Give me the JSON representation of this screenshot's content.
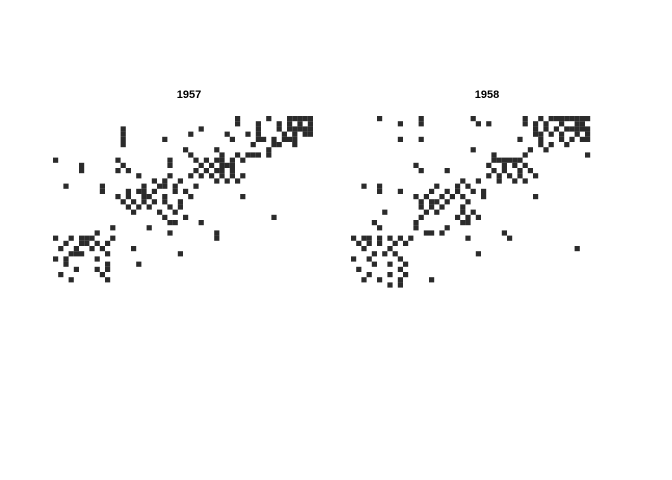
{
  "chart_data": [
    {
      "type": "heatmap",
      "title": "1957",
      "xlabel": "",
      "ylabel": "",
      "grid": false,
      "legend": "none",
      "n_rows": 50,
      "n_cols": 50,
      "color_filled": "#2b2b2b",
      "filled_cells": [
        [
          1,
          36
        ],
        [
          1,
          42
        ],
        [
          1,
          46
        ],
        [
          1,
          47
        ],
        [
          1,
          48
        ],
        [
          1,
          49
        ],
        [
          1,
          50
        ],
        [
          2,
          36
        ],
        [
          2,
          40
        ],
        [
          2,
          44
        ],
        [
          2,
          46
        ],
        [
          2,
          48
        ],
        [
          2,
          50
        ],
        [
          3,
          14
        ],
        [
          3,
          29
        ],
        [
          3,
          40
        ],
        [
          3,
          44
        ],
        [
          3,
          46
        ],
        [
          3,
          47
        ],
        [
          3,
          48
        ],
        [
          3,
          49
        ],
        [
          3,
          50
        ],
        [
          4,
          14
        ],
        [
          4,
          27
        ],
        [
          4,
          34
        ],
        [
          4,
          38
        ],
        [
          4,
          40
        ],
        [
          4,
          45
        ],
        [
          4,
          47
        ],
        [
          4,
          49
        ],
        [
          4,
          50
        ],
        [
          5,
          14
        ],
        [
          5,
          22
        ],
        [
          5,
          35
        ],
        [
          5,
          40
        ],
        [
          5,
          41
        ],
        [
          5,
          43
        ],
        [
          5,
          45
        ],
        [
          5,
          46
        ],
        [
          5,
          47
        ],
        [
          6,
          14
        ],
        [
          6,
          39
        ],
        [
          6,
          43
        ],
        [
          6,
          44
        ],
        [
          6,
          47
        ],
        [
          7,
          26
        ],
        [
          7,
          32
        ],
        [
          7,
          42
        ],
        [
          8,
          27
        ],
        [
          8,
          33
        ],
        [
          8,
          36
        ],
        [
          8,
          38
        ],
        [
          8,
          39
        ],
        [
          8,
          40
        ],
        [
          8,
          42
        ],
        [
          9,
          1
        ],
        [
          9,
          13
        ],
        [
          9,
          23
        ],
        [
          9,
          28
        ],
        [
          9,
          30
        ],
        [
          9,
          32
        ],
        [
          9,
          33
        ],
        [
          9,
          35
        ],
        [
          9,
          37
        ],
        [
          10,
          6
        ],
        [
          10,
          14
        ],
        [
          10,
          23
        ],
        [
          10,
          29
        ],
        [
          10,
          31
        ],
        [
          10,
          33
        ],
        [
          10,
          34
        ],
        [
          10,
          35
        ],
        [
          11,
          6
        ],
        [
          11,
          13
        ],
        [
          11,
          15
        ],
        [
          11,
          28
        ],
        [
          11,
          30
        ],
        [
          11,
          32
        ],
        [
          11,
          33
        ],
        [
          11,
          35
        ],
        [
          12,
          17
        ],
        [
          12,
          23
        ],
        [
          12,
          27
        ],
        [
          12,
          29
        ],
        [
          12,
          31
        ],
        [
          12,
          33
        ],
        [
          12,
          35
        ],
        [
          12,
          37
        ],
        [
          13,
          20
        ],
        [
          13,
          22
        ],
        [
          13,
          25
        ],
        [
          13,
          32
        ],
        [
          13,
          34
        ],
        [
          13,
          36
        ],
        [
          14,
          3
        ],
        [
          14,
          10
        ],
        [
          14,
          18
        ],
        [
          14,
          21
        ],
        [
          14,
          22
        ],
        [
          14,
          24
        ],
        [
          14,
          28
        ],
        [
          15,
          10
        ],
        [
          15,
          15
        ],
        [
          15,
          17
        ],
        [
          15,
          18
        ],
        [
          15,
          20
        ],
        [
          15,
          24
        ],
        [
          15,
          26
        ],
        [
          16,
          13
        ],
        [
          16,
          15
        ],
        [
          16,
          18
        ],
        [
          16,
          19
        ],
        [
          16,
          22
        ],
        [
          16,
          27
        ],
        [
          16,
          37
        ],
        [
          17,
          14
        ],
        [
          17,
          16
        ],
        [
          17,
          18
        ],
        [
          17,
          20
        ],
        [
          17,
          22
        ],
        [
          17,
          25
        ],
        [
          18,
          15
        ],
        [
          18,
          17
        ],
        [
          18,
          19
        ],
        [
          18,
          23
        ],
        [
          18,
          25
        ],
        [
          19,
          16
        ],
        [
          19,
          21
        ],
        [
          19,
          24
        ],
        [
          20,
          22
        ],
        [
          20,
          26
        ],
        [
          20,
          43
        ],
        [
          21,
          23
        ],
        [
          21,
          24
        ],
        [
          21,
          29
        ],
        [
          22,
          12
        ],
        [
          22,
          19
        ],
        [
          23,
          9
        ],
        [
          23,
          23
        ],
        [
          23,
          32
        ],
        [
          24,
          1
        ],
        [
          24,
          4
        ],
        [
          24,
          6
        ],
        [
          24,
          7
        ],
        [
          24,
          8
        ],
        [
          24,
          12
        ],
        [
          24,
          32
        ],
        [
          25,
          3
        ],
        [
          25,
          6
        ],
        [
          25,
          7
        ],
        [
          25,
          9
        ],
        [
          25,
          11
        ],
        [
          26,
          2
        ],
        [
          26,
          5
        ],
        [
          26,
          8
        ],
        [
          26,
          10
        ],
        [
          26,
          16
        ],
        [
          27,
          4
        ],
        [
          27,
          5
        ],
        [
          27,
          6
        ],
        [
          27,
          11
        ],
        [
          27,
          25
        ],
        [
          28,
          1
        ],
        [
          28,
          3
        ],
        [
          28,
          9
        ],
        [
          29,
          3
        ],
        [
          29,
          11
        ],
        [
          29,
          17
        ],
        [
          30,
          5
        ],
        [
          30,
          9
        ],
        [
          30,
          11
        ],
        [
          31,
          2
        ],
        [
          31,
          10
        ],
        [
          32,
          4
        ],
        [
          32,
          11
        ]
      ]
    },
    {
      "type": "heatmap",
      "title": "1958",
      "xlabel": "",
      "ylabel": "",
      "grid": false,
      "legend": "none",
      "n_rows": 50,
      "n_cols": 50,
      "color_filled": "#2b2b2b",
      "filled_cells": [
        [
          1,
          6
        ],
        [
          1,
          14
        ],
        [
          1,
          24
        ],
        [
          1,
          34
        ],
        [
          1,
          37
        ],
        [
          1,
          39
        ],
        [
          1,
          40
        ],
        [
          1,
          41
        ],
        [
          1,
          42
        ],
        [
          1,
          43
        ],
        [
          1,
          44
        ],
        [
          1,
          45
        ],
        [
          1,
          46
        ],
        [
          2,
          10
        ],
        [
          2,
          14
        ],
        [
          2,
          25
        ],
        [
          2,
          27
        ],
        [
          2,
          34
        ],
        [
          2,
          36
        ],
        [
          2,
          38
        ],
        [
          2,
          41
        ],
        [
          2,
          44
        ],
        [
          2,
          45
        ],
        [
          3,
          36
        ],
        [
          3,
          38
        ],
        [
          3,
          40
        ],
        [
          3,
          42
        ],
        [
          3,
          43
        ],
        [
          3,
          44
        ],
        [
          3,
          45
        ],
        [
          3,
          46
        ],
        [
          4,
          36
        ],
        [
          4,
          37
        ],
        [
          4,
          39
        ],
        [
          4,
          41
        ],
        [
          4,
          44
        ],
        [
          4,
          46
        ],
        [
          5,
          10
        ],
        [
          5,
          14
        ],
        [
          5,
          33
        ],
        [
          5,
          37
        ],
        [
          5,
          41
        ],
        [
          5,
          43
        ],
        [
          5,
          45
        ],
        [
          5,
          46
        ],
        [
          6,
          37
        ],
        [
          6,
          39
        ],
        [
          6,
          42
        ],
        [
          7,
          24
        ],
        [
          7,
          35
        ],
        [
          7,
          38
        ],
        [
          8,
          28
        ],
        [
          8,
          34
        ],
        [
          8,
          46
        ],
        [
          9,
          28
        ],
        [
          9,
          29
        ],
        [
          9,
          30
        ],
        [
          9,
          31
        ],
        [
          9,
          32
        ],
        [
          9,
          33
        ],
        [
          10,
          13
        ],
        [
          10,
          27
        ],
        [
          10,
          30
        ],
        [
          10,
          32
        ],
        [
          10,
          34
        ],
        [
          11,
          14
        ],
        [
          11,
          19
        ],
        [
          11,
          28
        ],
        [
          11,
          30
        ],
        [
          11,
          33
        ],
        [
          11,
          35
        ],
        [
          12,
          27
        ],
        [
          12,
          29
        ],
        [
          12,
          31
        ],
        [
          12,
          33
        ],
        [
          12,
          36
        ],
        [
          13,
          22
        ],
        [
          13,
          25
        ],
        [
          13,
          29
        ],
        [
          13,
          32
        ],
        [
          13,
          34
        ],
        [
          14,
          3
        ],
        [
          14,
          6
        ],
        [
          14,
          17
        ],
        [
          14,
          21
        ],
        [
          14,
          23
        ],
        [
          15,
          6
        ],
        [
          15,
          10
        ],
        [
          15,
          16
        ],
        [
          15,
          19
        ],
        [
          15,
          21
        ],
        [
          15,
          24
        ],
        [
          15,
          26
        ],
        [
          16,
          13
        ],
        [
          16,
          15
        ],
        [
          16,
          18
        ],
        [
          16,
          20
        ],
        [
          16,
          22
        ],
        [
          16,
          26
        ],
        [
          16,
          36
        ],
        [
          17,
          14
        ],
        [
          17,
          16
        ],
        [
          17,
          17
        ],
        [
          17,
          19
        ],
        [
          17,
          23
        ],
        [
          18,
          14
        ],
        [
          18,
          16
        ],
        [
          18,
          18
        ],
        [
          18,
          22
        ],
        [
          19,
          7
        ],
        [
          19,
          15
        ],
        [
          19,
          17
        ],
        [
          19,
          22
        ],
        [
          19,
          24
        ],
        [
          20,
          14
        ],
        [
          20,
          21
        ],
        [
          20,
          23
        ],
        [
          20,
          25
        ],
        [
          21,
          5
        ],
        [
          21,
          13
        ],
        [
          21,
          22
        ],
        [
          21,
          23
        ],
        [
          22,
          6
        ],
        [
          22,
          13
        ],
        [
          22,
          19
        ],
        [
          23,
          15
        ],
        [
          23,
          16
        ],
        [
          23,
          18
        ],
        [
          23,
          30
        ],
        [
          24,
          1
        ],
        [
          24,
          3
        ],
        [
          24,
          4
        ],
        [
          24,
          6
        ],
        [
          24,
          8
        ],
        [
          24,
          10
        ],
        [
          24,
          12
        ],
        [
          24,
          23
        ],
        [
          24,
          31
        ],
        [
          25,
          2
        ],
        [
          25,
          4
        ],
        [
          25,
          6
        ],
        [
          25,
          9
        ],
        [
          25,
          11
        ],
        [
          26,
          3
        ],
        [
          26,
          8
        ],
        [
          26,
          44
        ],
        [
          27,
          5
        ],
        [
          27,
          7
        ],
        [
          27,
          9
        ],
        [
          27,
          25
        ],
        [
          28,
          1
        ],
        [
          28,
          4
        ],
        [
          28,
          10
        ],
        [
          29,
          5
        ],
        [
          29,
          8
        ],
        [
          29,
          11
        ],
        [
          30,
          2
        ],
        [
          30,
          10
        ],
        [
          31,
          4
        ],
        [
          31,
          8
        ],
        [
          31,
          11
        ],
        [
          32,
          3
        ],
        [
          32,
          6
        ],
        [
          32,
          10
        ],
        [
          32,
          16
        ],
        [
          33,
          8
        ],
        [
          33,
          10
        ]
      ]
    }
  ]
}
